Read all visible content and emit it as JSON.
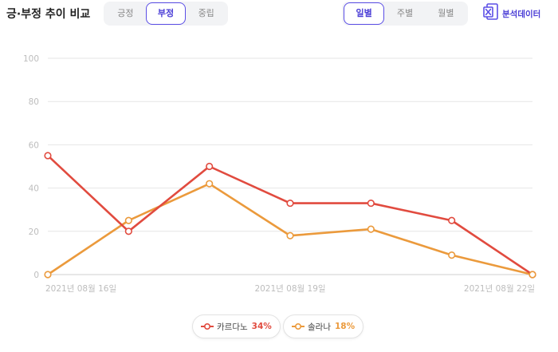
{
  "header": {
    "title": "긍·부정 추이 비교",
    "sentiment_tabs": [
      {
        "label": "긍정",
        "active": false
      },
      {
        "label": "부정",
        "active": true
      },
      {
        "label": "중립",
        "active": false
      }
    ],
    "period_tabs": [
      {
        "label": "일별",
        "active": true
      },
      {
        "label": "주별",
        "active": false
      },
      {
        "label": "월별",
        "active": false
      }
    ],
    "export_label": "분석데이터",
    "export_icon": "excel-icon"
  },
  "colors": {
    "accent": "#5b4ee6",
    "series1": "#e14b3f",
    "series2": "#eb9a3c",
    "grid": "#e6e6e6",
    "axis_label": "#bdbdbd"
  },
  "chart_data": {
    "type": "line",
    "title": "",
    "xlabel": "",
    "ylabel": "",
    "ylim": [
      0,
      100
    ],
    "yticks": [
      0,
      20,
      40,
      60,
      80,
      100
    ],
    "x": [
      "2021-08-16",
      "2021-08-17",
      "2021-08-18",
      "2021-08-19",
      "2021-08-20",
      "2021-08-21",
      "2021-08-22"
    ],
    "xtick_labels": [
      {
        "index": 0,
        "label": "2021년 08월 16일"
      },
      {
        "index": 3,
        "label": "2021년 08월 19일"
      },
      {
        "index": 6,
        "label": "2021년 08월 22일"
      }
    ],
    "series": [
      {
        "name": "카르다노",
        "percent": "34%",
        "color": "#e14b3f",
        "values": [
          55,
          20,
          50,
          33,
          33,
          25,
          0
        ]
      },
      {
        "name": "솔라나",
        "percent": "18%",
        "color": "#eb9a3c",
        "values": [
          0,
          25,
          42,
          18,
          21,
          9,
          0
        ]
      }
    ],
    "grid": true,
    "legend": "bottom-center"
  }
}
